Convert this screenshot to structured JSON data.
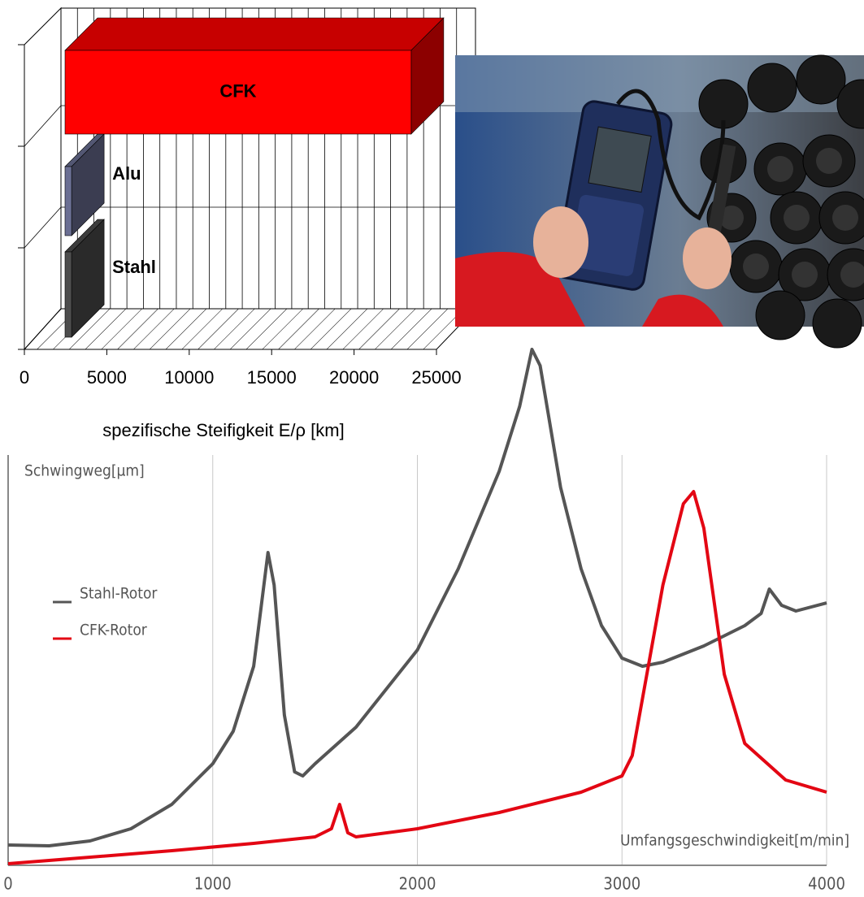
{
  "chart_data": [
    {
      "type": "bar3d",
      "orientation": "horizontal",
      "categories": [
        "Stahl",
        "Alu",
        "CFK"
      ],
      "values": [
        400,
        400,
        21000
      ],
      "colors": [
        "#4d4d4d",
        "#6b6f93",
        "#ff0000"
      ],
      "xlabel": "spezifische Steifigkeit E/ρ [km]",
      "xlim": [
        0,
        25000
      ],
      "xticks": [
        0,
        5000,
        10000,
        15000,
        20000,
        25000
      ],
      "xgrid": [
        1000,
        2000,
        3000,
        4000,
        5000,
        6000,
        7000,
        8000,
        9000,
        10000,
        11000,
        12000,
        13000,
        14000,
        15000,
        16000,
        17000,
        18000,
        19000,
        20000,
        21000,
        22000,
        23000,
        24000
      ]
    },
    {
      "type": "line",
      "ylabel": "Schwingweg[µm]",
      "xlabel": "Umfangsgeschwindigkeit[m/min]",
      "xlim": [
        0,
        4000
      ],
      "xticks": [
        0,
        1000,
        2000,
        3000,
        4000
      ],
      "ylim": [
        0,
        130
      ],
      "grid": true,
      "series": [
        {
          "name": "Stahl-Rotor",
          "color": "#555555",
          "x": [
            0,
            200,
            400,
            600,
            800,
            1000,
            1100,
            1200,
            1250,
            1270,
            1300,
            1350,
            1400,
            1440,
            1500,
            1700,
            2000,
            2200,
            2400,
            2500,
            2560,
            2600,
            2700,
            2800,
            2900,
            3000,
            3100,
            3200,
            3400,
            3600,
            3680,
            3720,
            3780,
            3850,
            4000
          ],
          "values": [
            5,
            4.8,
            6,
            9,
            15,
            25,
            33,
            49,
            69,
            77,
            69,
            37,
            23,
            22,
            25,
            34,
            53,
            73,
            97,
            113,
            127,
            123,
            93,
            73,
            59,
            51,
            49,
            50,
            54,
            59,
            62,
            68,
            64,
            62.6,
            64.6
          ]
        },
        {
          "name": "CFK-Rotor",
          "color": "#e30613",
          "x": [
            0,
            400,
            800,
            1200,
            1500,
            1580,
            1620,
            1660,
            1700,
            2000,
            2400,
            2800,
            3000,
            3050,
            3100,
            3200,
            3300,
            3350,
            3400,
            3500,
            3600,
            3800,
            4000
          ],
          "values": [
            0.4,
            2,
            3.6,
            5.4,
            7,
            9,
            15,
            8,
            7,
            9,
            13,
            18,
            22,
            27,
            41,
            69,
            89,
            92,
            83,
            47,
            30,
            21,
            18
          ]
        }
      ]
    }
  ]
}
